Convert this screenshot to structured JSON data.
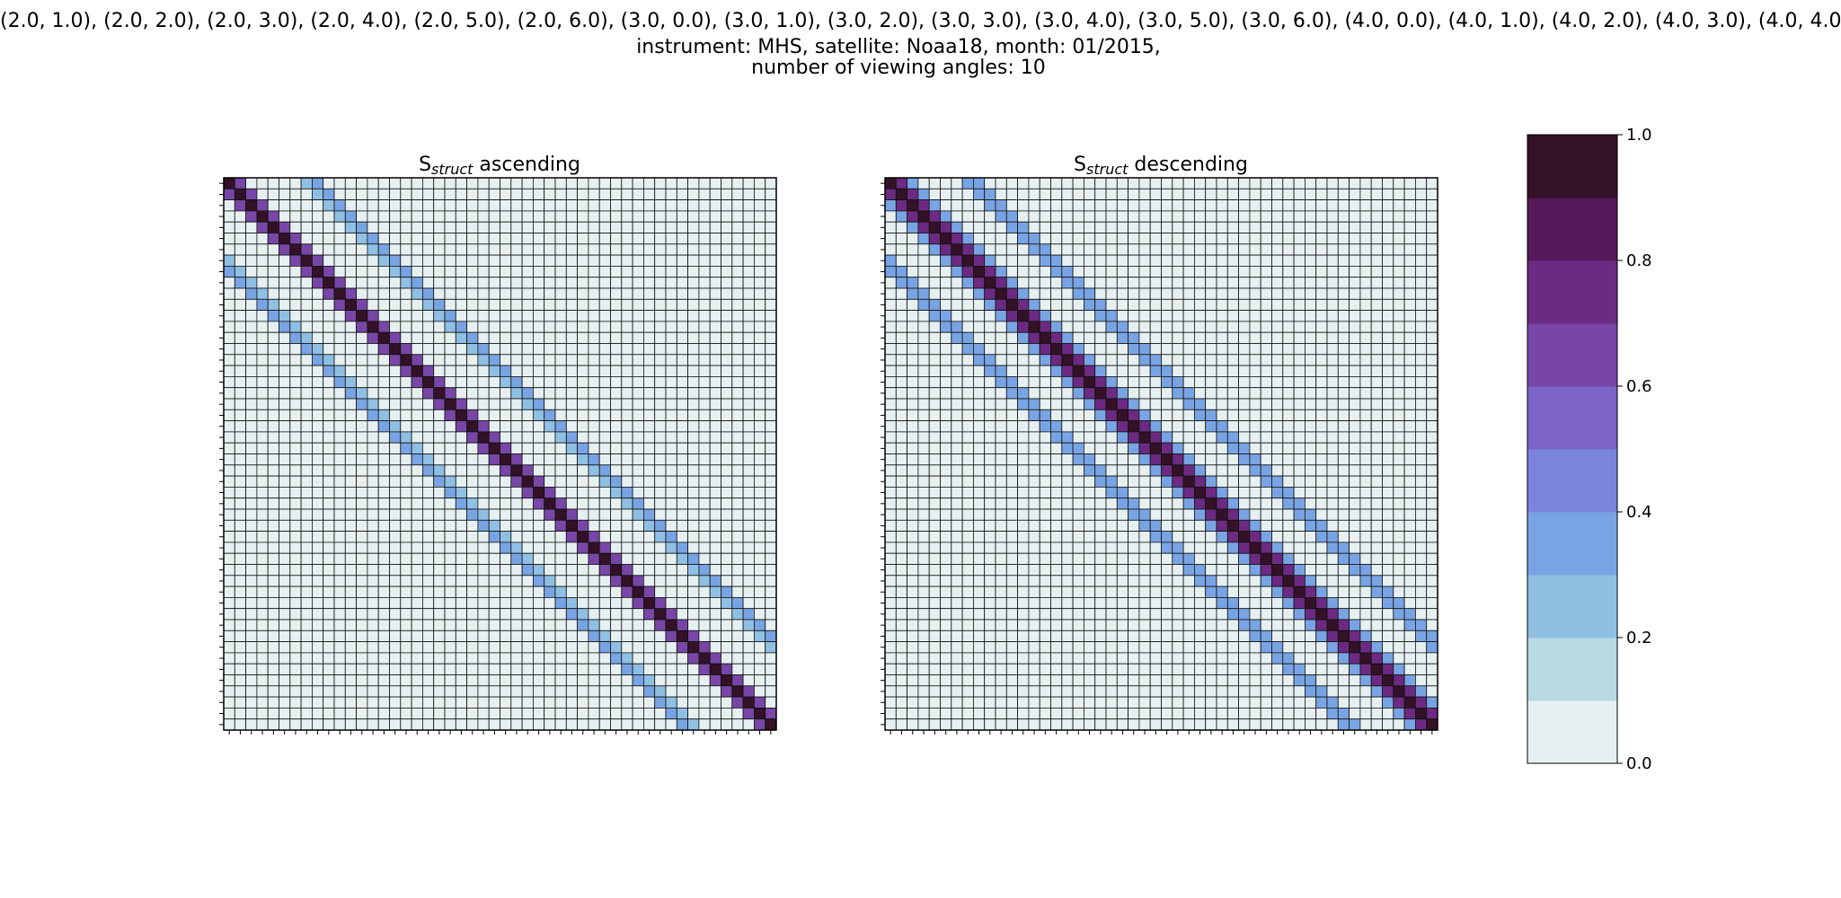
{
  "header": {
    "line1": "(2.0, 1.0), (2.0, 2.0), (2.0, 3.0), (2.0, 4.0), (2.0, 5.0), (2.0, 6.0), (3.0, 0.0), (3.0, 1.0), (3.0, 2.0), (3.0, 3.0), (3.0, 4.0), (3.0, 5.0), (3.0, 6.0), (4.0, 0.0), (4.0, 1.0), (4.0, 2.0), (4.0, 3.0), (4.0, 4.0",
    "line2": "instrument: MHS, satellite: Noaa18, month: 01/2015,",
    "line3": "number of viewing angles: 10"
  },
  "chart_data": {
    "type": "heatmap",
    "matrix_size": 50,
    "colormap": {
      "levels": [
        0.0,
        0.1,
        0.2,
        0.3,
        0.4,
        0.5,
        0.6,
        0.7,
        0.8,
        0.9,
        1.0
      ],
      "colors": [
        "#e6f0f0",
        "#b7dae4",
        "#8fc0e3",
        "#79a4e4",
        "#7a84dd",
        "#7c63c8",
        "#7846a7",
        "#6c2a82",
        "#561859",
        "#331126"
      ],
      "ticks": [
        "0.0",
        "0.2",
        "0.4",
        "0.6",
        "0.8",
        "1.0"
      ]
    },
    "panels": [
      {
        "name": "ascending",
        "title_main": "S",
        "title_sub": "struct",
        "title_rest": " ascending",
        "bands": [
          {
            "offset": 0,
            "value": 0.97
          },
          {
            "offset": 1,
            "value": 0.6
          },
          {
            "offset": -1,
            "value": 0.6
          },
          {
            "offset": 7,
            "value": 0.25
          },
          {
            "offset": -7,
            "value": 0.25
          },
          {
            "offset": 8,
            "value": 0.3
          },
          {
            "offset": -8,
            "value": 0.3
          }
        ]
      },
      {
        "name": "descending",
        "title_main": "S",
        "title_sub": "struct",
        "title_rest": " descending",
        "bands": [
          {
            "offset": 0,
            "value": 0.97
          },
          {
            "offset": 1,
            "value": 0.75
          },
          {
            "offset": -1,
            "value": 0.75
          },
          {
            "offset": 2,
            "value": 0.3
          },
          {
            "offset": -2,
            "value": 0.3
          },
          {
            "offset": 7,
            "value": 0.3
          },
          {
            "offset": -7,
            "value": 0.3
          },
          {
            "offset": 8,
            "value": 0.35
          },
          {
            "offset": -8,
            "value": 0.35
          }
        ]
      }
    ]
  }
}
